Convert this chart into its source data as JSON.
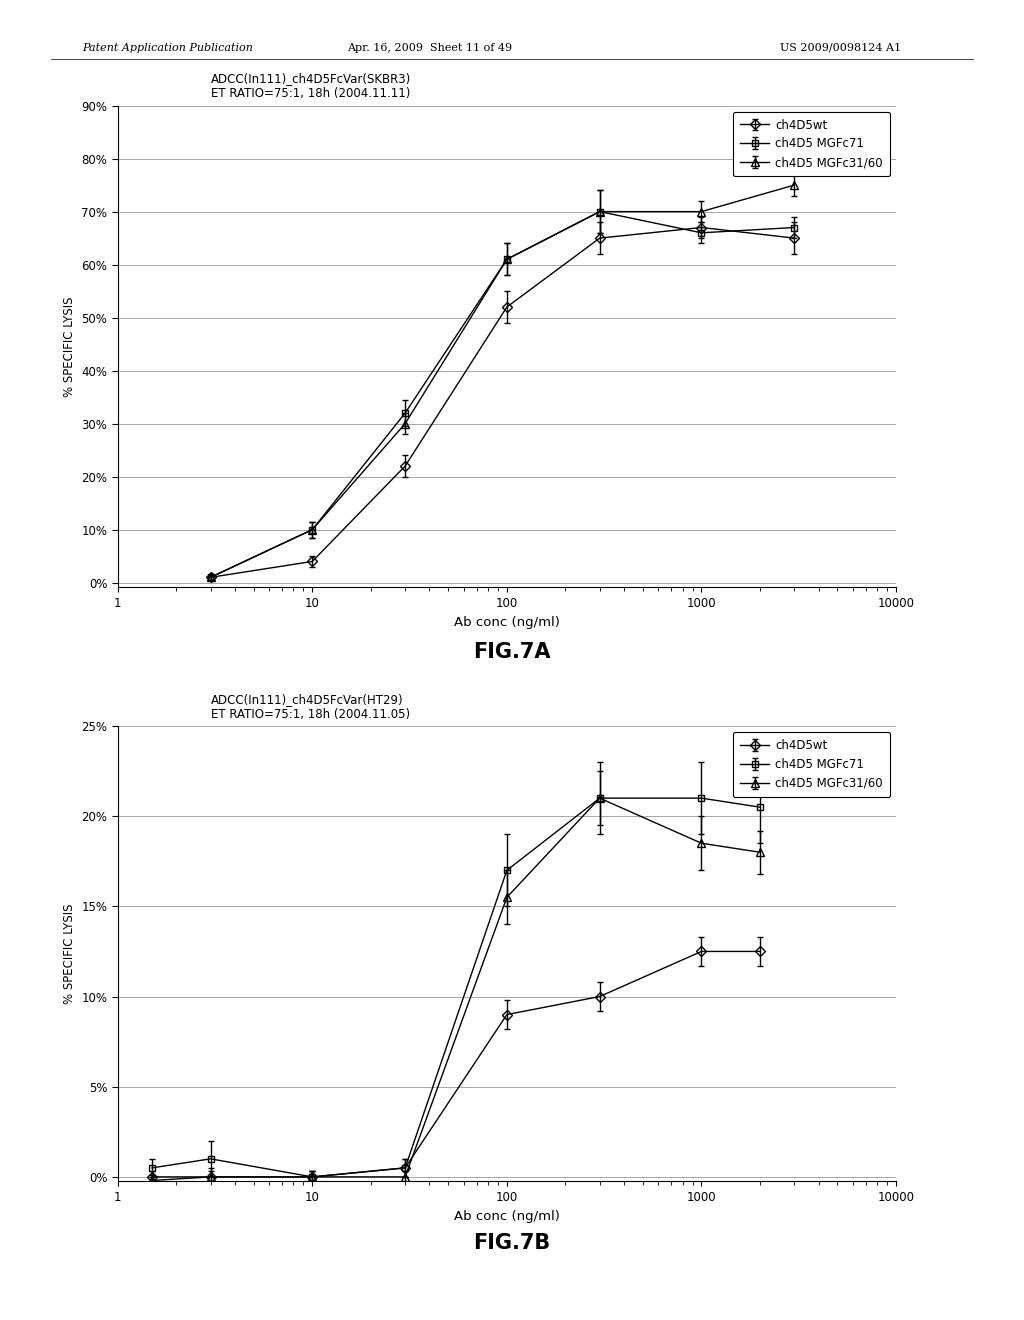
{
  "fig7a": {
    "title_line1": "ADCC(In111)_ch4D5FcVar(SKBR3)",
    "title_line2": "ET RATIO=75:1, 18h (2004.11.11)",
    "xlabel": "Ab conc (ng/ml)",
    "ylabel": "% SPECIFIC LYSIS",
    "ylim_min": 0.0,
    "ylim_max": 0.9,
    "yticks": [
      0.0,
      0.1,
      0.2,
      0.3,
      0.4,
      0.5,
      0.6,
      0.7,
      0.8,
      0.9
    ],
    "ytick_labels": [
      "0%",
      "10%",
      "20%",
      "30%",
      "40%",
      "50%",
      "60%",
      "70%",
      "80%",
      "90%"
    ],
    "xlim_min": 1,
    "xlim_max": 10000,
    "series": [
      {
        "label": "ch4D5wt",
        "x": [
          3,
          10,
          30,
          100,
          300,
          1000,
          3000
        ],
        "y": [
          0.01,
          0.04,
          0.22,
          0.52,
          0.65,
          0.67,
          0.65
        ],
        "yerr": [
          0.005,
          0.01,
          0.02,
          0.03,
          0.03,
          0.02,
          0.03
        ],
        "marker": "D",
        "markersize": 5
      },
      {
        "label": "ch4D5 MGFc71",
        "x": [
          3,
          10,
          30,
          100,
          300,
          1000,
          3000
        ],
        "y": [
          0.01,
          0.1,
          0.32,
          0.61,
          0.7,
          0.66,
          0.67
        ],
        "yerr": [
          0.005,
          0.015,
          0.025,
          0.03,
          0.04,
          0.02,
          0.02
        ],
        "marker": "s",
        "markersize": 5
      },
      {
        "label": "ch4D5 MGFc31/60",
        "x": [
          3,
          10,
          30,
          100,
          300,
          1000,
          3000
        ],
        "y": [
          0.01,
          0.1,
          0.3,
          0.61,
          0.7,
          0.7,
          0.75
        ],
        "yerr": [
          0.005,
          0.015,
          0.02,
          0.03,
          0.04,
          0.02,
          0.02
        ],
        "marker": "^",
        "markersize": 6
      }
    ]
  },
  "fig7b": {
    "title_line1": "ADCC(In111)_ch4D5FcVar(HT29)",
    "title_line2": "ET RATIO=75:1, 18h (2004.11.05)",
    "xlabel": "Ab conc (ng/ml)",
    "ylabel": "% SPECIFIC LYSIS",
    "ylim_min": 0.0,
    "ylim_max": 0.25,
    "yticks": [
      0.0,
      0.05,
      0.1,
      0.15,
      0.2,
      0.25
    ],
    "ytick_labels": [
      "0%",
      "5%",
      "10%",
      "15%",
      "20%",
      "25%"
    ],
    "xlim_min": 1,
    "xlim_max": 10000,
    "series": [
      {
        "label": "ch4D5wt",
        "x": [
          1.5,
          3,
          10,
          30,
          100,
          300,
          1000,
          2000
        ],
        "y": [
          0.0,
          0.0,
          0.0,
          0.005,
          0.09,
          0.1,
          0.125,
          0.125
        ],
        "yerr": [
          0.003,
          0.005,
          0.003,
          0.005,
          0.008,
          0.008,
          0.008,
          0.008
        ],
        "marker": "D",
        "markersize": 5
      },
      {
        "label": "ch4D5 MGFc71",
        "x": [
          1.5,
          3,
          10,
          30,
          100,
          300,
          1000,
          2000
        ],
        "y": [
          0.005,
          0.01,
          0.0,
          0.005,
          0.17,
          0.21,
          0.21,
          0.205
        ],
        "yerr": [
          0.005,
          0.01,
          0.003,
          0.005,
          0.02,
          0.02,
          0.02,
          0.02
        ],
        "marker": "s",
        "markersize": 5
      },
      {
        "label": "ch4D5 MGFc31/60",
        "x": [
          1.5,
          3,
          10,
          30,
          100,
          300,
          1000,
          2000
        ],
        "y": [
          -0.002,
          0.0,
          0.0,
          0.0,
          0.155,
          0.21,
          0.185,
          0.18
        ],
        "yerr": [
          0.003,
          0.003,
          0.003,
          0.003,
          0.015,
          0.015,
          0.015,
          0.012
        ],
        "marker": "^",
        "markersize": 6
      }
    ]
  },
  "header_left": "Patent Application Publication",
  "header_mid": "Apr. 16, 2009  Sheet 11 of 49",
  "header_right": "US 2009/0098124 A1",
  "fig7a_label": "FIG.7A",
  "fig7b_label": "FIG.7B",
  "bg_color": "#ffffff",
  "line_color": "#000000",
  "grid_color": "#999999"
}
